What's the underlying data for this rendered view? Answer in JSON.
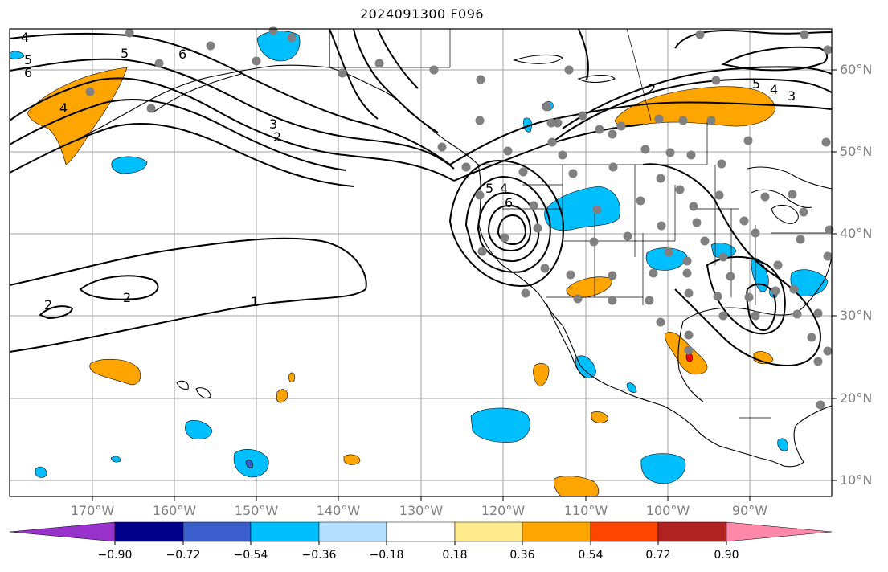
{
  "title": "2024091300 F096",
  "map": {
    "lat_labels": [
      "60°N",
      "50°N",
      "40°N",
      "30°N",
      "20°N",
      "10°N"
    ],
    "lon_labels": [
      "170°W",
      "160°W",
      "150°W",
      "140°W",
      "130°W",
      "120°W",
      "110°W",
      "100°W",
      "90°W"
    ],
    "contour_labels": [
      "4",
      "5",
      "6",
      "6",
      "5",
      "4",
      "3",
      "2",
      "2",
      "2",
      "1",
      "4",
      "5",
      "6",
      "5",
      "4",
      "3",
      "2"
    ],
    "colors": {
      "positive_medium": "#ffa500",
      "positive_strong": "#ff0000",
      "negative_medium": "#00bfff",
      "negative_strong": "#3a5fcd",
      "station": "#808080",
      "grid": "#a0a0a0"
    }
  },
  "colorbar": {
    "ticks": [
      "−0.90",
      "−0.72",
      "−0.54",
      "−0.36",
      "−0.18",
      "0.18",
      "0.36",
      "0.54",
      "0.72",
      "0.90"
    ],
    "colors": [
      "#9932cc",
      "#00008b",
      "#3a5fcd",
      "#00bfff",
      "#b2dfff",
      "#ffffff",
      "#ffeb8c",
      "#ffa500",
      "#ff4500",
      "#b22222",
      "#ff88aa"
    ]
  }
}
